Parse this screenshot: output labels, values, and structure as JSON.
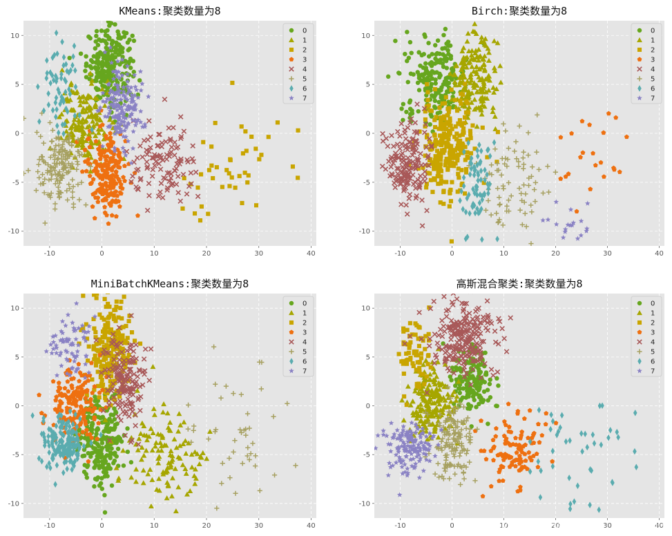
{
  "watermark": "https://blog.csdn.net/weixin_38898803",
  "colors": [
    "#66a61e",
    "#a6a600",
    "#c9a500",
    "#ee7010",
    "#a85858",
    "#a6a060",
    "#5aacaf",
    "#8a82c4"
  ],
  "markers": [
    "circle",
    "triangle",
    "square",
    "pentagon",
    "x",
    "plus",
    "diamond",
    "star"
  ],
  "legend": [
    "0",
    "1",
    "2",
    "3",
    "4",
    "5",
    "6",
    "7"
  ],
  "chart_data": [
    {
      "type": "scatter",
      "title": "KMeans:聚类数量为8",
      "xlabel": "",
      "ylabel": "",
      "xlim": [
        -15,
        41
      ],
      "ylim": [
        -11.5,
        11.5
      ],
      "xticks": [
        -10,
        0,
        10,
        20,
        30,
        40
      ],
      "yticks": [
        -10,
        -5,
        0,
        5,
        10
      ],
      "grid": true,
      "legend_position": "top-right",
      "clusters": [
        {
          "label": "0",
          "cx": 1.5,
          "cy": 7.0,
          "sx": 2.2,
          "sy": 1.9,
          "n": 260
        },
        {
          "label": "1",
          "cx": -3.0,
          "cy": 1.0,
          "sx": 2.4,
          "sy": 2.0,
          "n": 170
        },
        {
          "label": "2",
          "cx": 24.0,
          "cy": -4.0,
          "sx": 5.0,
          "sy": 3.8,
          "n": 45
        },
        {
          "label": "3",
          "cx": 1.0,
          "cy": -3.8,
          "sx": 2.0,
          "sy": 2.2,
          "n": 200
        },
        {
          "label": "4",
          "cx": 12.0,
          "cy": -3.5,
          "sx": 3.4,
          "sy": 2.2,
          "n": 110
        },
        {
          "label": "5",
          "cx": -8.0,
          "cy": -3.5,
          "sx": 2.2,
          "sy": 1.9,
          "n": 160
        },
        {
          "label": "6",
          "cx": -8.0,
          "cy": 4.5,
          "sx": 1.8,
          "sy": 2.4,
          "n": 60
        },
        {
          "label": "7",
          "cx": 4.0,
          "cy": 3.0,
          "sx": 2.0,
          "sy": 2.2,
          "n": 170
        }
      ]
    },
    {
      "type": "scatter",
      "title": "Birch:聚类数量为8",
      "xlabel": "",
      "ylabel": "",
      "xlim": [
        -15,
        41
      ],
      "ylim": [
        -11.5,
        11.5
      ],
      "xticks": [
        -10,
        0,
        10,
        20,
        30,
        40
      ],
      "yticks": [
        -10,
        -5,
        0,
        5,
        10
      ],
      "grid": true,
      "legend_position": "top-right",
      "clusters": [
        {
          "label": "0",
          "cx": -3.0,
          "cy": 5.5,
          "sx": 3.0,
          "sy": 2.2,
          "n": 200
        },
        {
          "label": "1",
          "cx": 4.0,
          "cy": 5.5,
          "sx": 2.2,
          "sy": 2.4,
          "n": 180
        },
        {
          "label": "2",
          "cx": -1.0,
          "cy": -1.5,
          "sx": 2.6,
          "sy": 2.6,
          "n": 260
        },
        {
          "label": "3",
          "cx": 27.0,
          "cy": -1.5,
          "sx": 5.5,
          "sy": 2.0,
          "n": 22
        },
        {
          "label": "4",
          "cx": -8.5,
          "cy": -3.0,
          "sx": 2.0,
          "sy": 2.2,
          "n": 160
        },
        {
          "label": "5",
          "cx": 12.0,
          "cy": -4.5,
          "sx": 3.5,
          "sy": 2.4,
          "n": 80
        },
        {
          "label": "6",
          "cx": 5.0,
          "cy": -5.0,
          "sx": 1.5,
          "sy": 2.4,
          "n": 70
        },
        {
          "label": "7",
          "cx": 23.0,
          "cy": -9.0,
          "sx": 2.5,
          "sy": 1.2,
          "n": 18
        }
      ]
    },
    {
      "type": "scatter",
      "title": "MiniBatchKMeans:聚类数量为8",
      "xlabel": "",
      "ylabel": "",
      "xlim": [
        -15,
        41
      ],
      "ylim": [
        -11.5,
        11.5
      ],
      "xticks": [
        -10,
        0,
        10,
        20,
        30,
        40
      ],
      "yticks": [
        -10,
        -5,
        0,
        5,
        10
      ],
      "grid": true,
      "legend_position": "top-right",
      "clusters": [
        {
          "label": "0",
          "cx": 0.0,
          "cy": -3.5,
          "sx": 2.2,
          "sy": 2.3,
          "n": 240
        },
        {
          "label": "1",
          "cx": 12.0,
          "cy": -5.0,
          "sx": 4.2,
          "sy": 2.6,
          "n": 120
        },
        {
          "label": "2",
          "cx": 1.5,
          "cy": 6.0,
          "sx": 2.0,
          "sy": 2.6,
          "n": 230
        },
        {
          "label": "3",
          "cx": -5.5,
          "cy": 0.0,
          "sx": 2.3,
          "sy": 1.9,
          "n": 170
        },
        {
          "label": "4",
          "cx": 4.5,
          "cy": 2.5,
          "sx": 2.0,
          "sy": 2.4,
          "n": 160
        },
        {
          "label": "5",
          "cx": 26.0,
          "cy": -3.0,
          "sx": 5.0,
          "sy": 3.5,
          "n": 45
        },
        {
          "label": "6",
          "cx": -7.5,
          "cy": -4.0,
          "sx": 2.2,
          "sy": 1.4,
          "n": 160
        },
        {
          "label": "7",
          "cx": -6.0,
          "cy": 6.0,
          "sx": 2.0,
          "sy": 1.9,
          "n": 70
        }
      ]
    },
    {
      "type": "scatter",
      "title": "高斯混合聚类:聚类数量为8",
      "xlabel": "",
      "ylabel": "",
      "xlim": [
        -15,
        41
      ],
      "ylim": [
        -11.5,
        11.5
      ],
      "xticks": [
        -10,
        0,
        10,
        20,
        30,
        40
      ],
      "yticks": [
        -10,
        -5,
        0,
        5,
        10
      ],
      "grid": true,
      "legend_position": "top-right",
      "clusters": [
        {
          "label": "0",
          "cx": 4.0,
          "cy": 2.5,
          "sx": 2.0,
          "sy": 1.8,
          "n": 150
        },
        {
          "label": "1",
          "cx": -4.0,
          "cy": 0.5,
          "sx": 2.4,
          "sy": 2.0,
          "n": 200
        },
        {
          "label": "2",
          "cx": -7.5,
          "cy": 5.0,
          "sx": 1.5,
          "sy": 2.2,
          "n": 70
        },
        {
          "label": "3",
          "cx": 12.0,
          "cy": -4.5,
          "sx": 3.2,
          "sy": 2.0,
          "n": 110
        },
        {
          "label": "4",
          "cx": 2.0,
          "cy": 7.0,
          "sx": 3.5,
          "sy": 1.8,
          "n": 230
        },
        {
          "label": "5",
          "cx": 0.0,
          "cy": -3.5,
          "sx": 2.2,
          "sy": 2.0,
          "n": 150
        },
        {
          "label": "6",
          "cx": 25.0,
          "cy": -4.0,
          "sx": 5.5,
          "sy": 3.8,
          "n": 45
        },
        {
          "label": "7",
          "cx": -8.0,
          "cy": -4.5,
          "sx": 2.4,
          "sy": 1.5,
          "n": 150
        }
      ]
    }
  ]
}
